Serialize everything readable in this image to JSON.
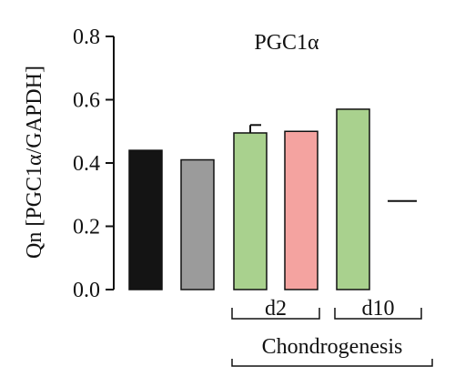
{
  "chart_data": {
    "type": "bar",
    "title": "PGC1α",
    "ylabel": "Qn [PGC1α/GAPDH]",
    "ylim": [
      0,
      0.8
    ],
    "yticks": [
      "0.0",
      "0.2",
      "0.4",
      "0.6",
      "0.8"
    ],
    "values": [
      0.44,
      0.41,
      0.495,
      0.5,
      0.57,
      null
    ],
    "errors": [
      null,
      null,
      0.025,
      null,
      null,
      null
    ],
    "colors": [
      "#141414",
      "#9b9b9b",
      "#a9d18e",
      "#f4a3a0",
      "#a9d18e",
      "#ffffff"
    ],
    "dash_mark": 0.28,
    "groups": [
      {
        "label": "d2",
        "bars": [
          2,
          3
        ]
      },
      {
        "label": "d10",
        "bars": [
          4,
          5
        ]
      }
    ],
    "super_group": {
      "label": "Chondrogenesis",
      "bars": [
        2,
        5
      ]
    }
  }
}
